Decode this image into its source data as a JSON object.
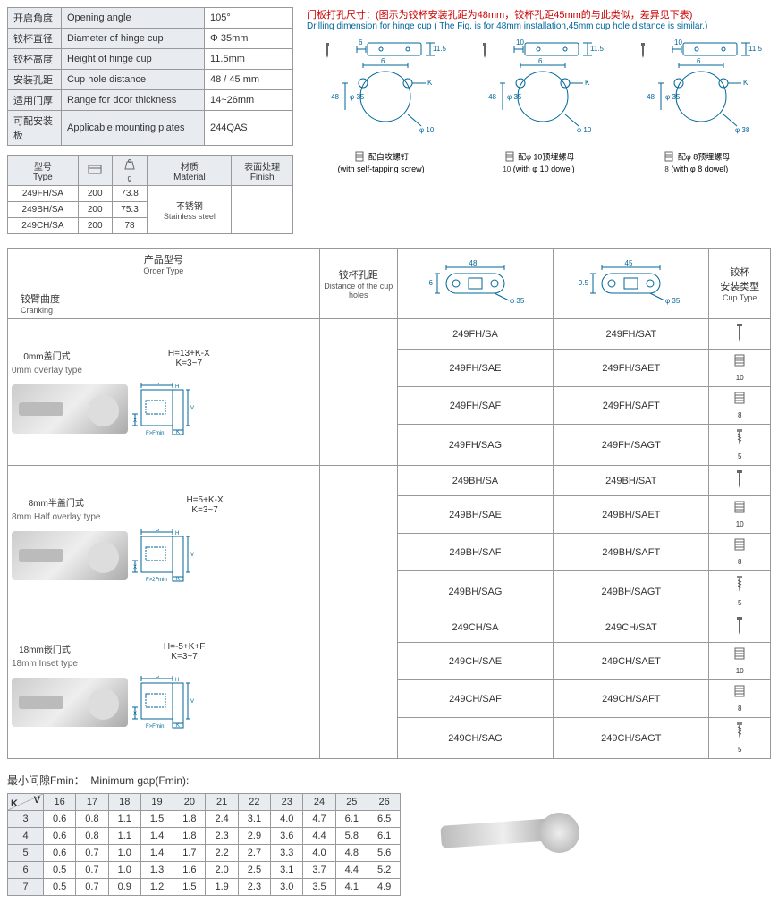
{
  "specs": [
    {
      "cn": "开启角度",
      "en": "Opening angle",
      "val": "105°"
    },
    {
      "cn": "铰杯直径",
      "en": "Diameter of hinge cup",
      "val": "Φ 35mm"
    },
    {
      "cn": "铰杯高度",
      "en": "Height of hinge cup",
      "val": "11.5mm"
    },
    {
      "cn": "安装孔距",
      "en": "Cup hole distance",
      "val": "48 / 45 mm"
    },
    {
      "cn": "适用门厚",
      "en": "Range for door thickness",
      "val": "14~26mm"
    },
    {
      "cn": "可配安装板",
      "en": "Applicable mounting plates",
      "val": "244QAS"
    }
  ],
  "matHeaders": {
    "type_cn": "型号",
    "type_en": "Type",
    "pcs_icon": "📦",
    "weight_icon": "g",
    "mat_cn": "材质",
    "mat_en": "Material",
    "finish_cn": "表面处理",
    "finish_en": "Finish"
  },
  "matRows": [
    {
      "type": "249FH/SA",
      "pcs": "200",
      "g": "73.8"
    },
    {
      "type": "249BH/SA",
      "pcs": "200",
      "g": "75.3"
    },
    {
      "type": "249CH/SA",
      "pcs": "200",
      "g": "78"
    }
  ],
  "matMatCn": "不锈钢",
  "matMatEn": "Stainless steel",
  "drillTitle": {
    "cn": "门板打孔尺寸：(图示为铰杯安装孔距为48mm，铰杯孔距45mm的与此类似，差异见下表)",
    "en": "Drilling dimension for hinge cup ( The Fig. is for 48mm installation,45mm cup hole distance is similar.)"
  },
  "drillDiags": [
    {
      "dims": {
        "w": "48",
        "d": "φ 35",
        "h": "11.5",
        "k": "K",
        "t": "6",
        "b": "φ 10"
      },
      "label_cn": "配自攻螺钉",
      "label_en": "(with self-tapping screw)",
      "sub": ""
    },
    {
      "dims": {
        "w": "48",
        "d": "φ 35",
        "h": "11.5",
        "k": "K",
        "t": "10",
        "b": "φ 10"
      },
      "label_cn": "配φ 10预埋螺母",
      "label_en": "(with φ 10 dowel)",
      "sub": "10"
    },
    {
      "dims": {
        "w": "48",
        "d": "φ 35",
        "h": "11.5",
        "k": "K",
        "t": "10",
        "b": "φ 38"
      },
      "label_cn": "配φ 8预埋螺母",
      "label_en": "(with φ 8 dowel)",
      "sub": "8"
    }
  ],
  "gridHeaders": {
    "cranking_cn": "铰臂曲度",
    "cranking_en": "Cranking",
    "order_cn": "产品型号",
    "order_en": "Order Type",
    "dist_cn": "铰杯孔距",
    "dist_en": "Distance of the cup holes",
    "cup_cn": "铰杯\n安装类型",
    "cup_en": "Cup Type",
    "dist48": "48",
    "dist48_d": "φ 35",
    "dist48_h": "6",
    "dist45": "45",
    "dist45_d": "φ 35",
    "dist45_h": "9.5"
  },
  "crankTypes": [
    {
      "cn": "0mm盖门式",
      "en": "0mm overlay type",
      "h": "H=13+K-X",
      "k": "K=3~7",
      "f": "F>Fmin",
      "prefix": "249FH"
    },
    {
      "cn": "8mm半盖门式",
      "en": "8mm Half overlay type",
      "h": "H=5+K-X",
      "k": "K=3~7",
      "f": "F>2Fmin",
      "prefix": "249BH"
    },
    {
      "cn": "18mm嵌门式",
      "en": "18mm Inset type",
      "h": "H=-5+K+F",
      "k": "K=3~7",
      "f": "F>Fmin",
      "prefix": "249CH"
    }
  ],
  "orderSuffixes": [
    {
      "s48": "/SA",
      "s45": "/SAT",
      "icon": "screw",
      "sub": ""
    },
    {
      "s48": "/SAE",
      "s45": "/SAET",
      "icon": "dowel",
      "sub": "10"
    },
    {
      "s48": "/SAF",
      "s45": "/SAFT",
      "icon": "dowel",
      "sub": "8"
    },
    {
      "s48": "/SAG",
      "s45": "/SAGT",
      "icon": "screw2",
      "sub": "5"
    }
  ],
  "fmin": {
    "title_cn": "最小间隙Fmin：",
    "title_en": "Minimum gap(Fmin):",
    "vLabel": "V",
    "kLabel": "K",
    "vCols": [
      "16",
      "17",
      "18",
      "19",
      "20",
      "21",
      "22",
      "23",
      "24",
      "25",
      "26"
    ],
    "rows": [
      {
        "k": "3",
        "v": [
          "0.6",
          "0.8",
          "1.1",
          "1.5",
          "1.8",
          "2.4",
          "3.1",
          "4.0",
          "4.7",
          "6.1",
          "6.5"
        ]
      },
      {
        "k": "4",
        "v": [
          "0.6",
          "0.8",
          "1.1",
          "1.4",
          "1.8",
          "2.3",
          "2.9",
          "3.6",
          "4.4",
          "5.8",
          "6.1"
        ]
      },
      {
        "k": "5",
        "v": [
          "0.6",
          "0.7",
          "1.0",
          "1.4",
          "1.7",
          "2.2",
          "2.7",
          "3.3",
          "4.0",
          "4.8",
          "5.6"
        ]
      },
      {
        "k": "6",
        "v": [
          "0.5",
          "0.7",
          "1.0",
          "1.3",
          "1.6",
          "2.0",
          "2.5",
          "3.1",
          "3.7",
          "4.4",
          "5.2"
        ]
      },
      {
        "k": "7",
        "v": [
          "0.5",
          "0.7",
          "0.9",
          "1.2",
          "1.5",
          "1.9",
          "2.3",
          "3.0",
          "3.5",
          "4.1",
          "4.9"
        ]
      }
    ]
  },
  "colors": {
    "red": "#c00",
    "blue": "#069",
    "border": "#999",
    "shade": "#e8ecf0"
  }
}
